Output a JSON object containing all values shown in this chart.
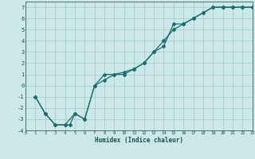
{
  "xlabel": "Humidex (Indice chaleur)",
  "bg_color": "#cce8e8",
  "grid_color": "#aacccc",
  "line_color": "#1a6e6e",
  "xlim": [
    0,
    23
  ],
  "ylim": [
    -4,
    7.5
  ],
  "xticks": [
    0,
    1,
    2,
    3,
    4,
    5,
    6,
    7,
    8,
    9,
    10,
    11,
    12,
    13,
    14,
    15,
    16,
    17,
    18,
    19,
    20,
    21,
    22,
    23
  ],
  "yticks": [
    -4,
    -3,
    -2,
    -1,
    0,
    1,
    2,
    3,
    4,
    5,
    6,
    7
  ],
  "line1_x": [
    1,
    2,
    3,
    4,
    4.5,
    5,
    6,
    7,
    8,
    9,
    10,
    11,
    12,
    13,
    14,
    15,
    16,
    17,
    18,
    19,
    20,
    21,
    22,
    23
  ],
  "line1_y": [
    -1,
    -2.5,
    -3.5,
    -3.5,
    -3.5,
    -2.5,
    -3.0,
    0.0,
    1.0,
    1.0,
    1.0,
    1.5,
    2.0,
    3.0,
    3.5,
    5.5,
    5.5,
    6.0,
    6.5,
    7.0,
    7.0,
    7.0,
    7.0,
    7.0
  ],
  "line2_x": [
    1,
    2,
    3,
    4,
    5,
    6,
    7,
    8,
    9,
    10,
    11,
    12,
    13,
    14,
    15,
    16,
    17,
    18,
    19,
    20,
    21,
    22,
    23
  ],
  "line2_y": [
    -1,
    -2.5,
    -3.5,
    -3.5,
    -2.5,
    -3.0,
    0.0,
    0.5,
    1.0,
    1.2,
    1.5,
    2.0,
    3.0,
    4.0,
    5.0,
    5.5,
    6.0,
    6.5,
    7.0,
    7.0,
    7.0,
    7.0,
    7.0
  ]
}
